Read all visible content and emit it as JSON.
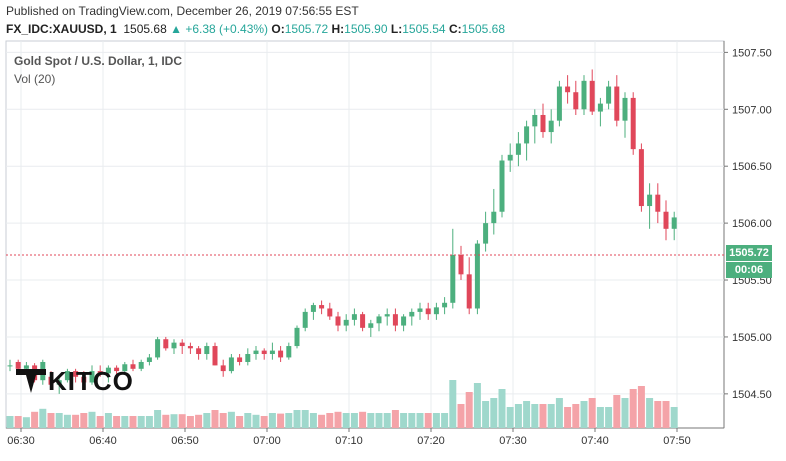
{
  "header": {
    "published": "Published on TradingView.com, December 26, 2019 07:56:55 EST",
    "symbol": "FX_IDC:XAUUSD, 1",
    "last": "1505.68",
    "change": "+6.38 (+0.43%)",
    "o_label": "O:",
    "o_value": "1505.72",
    "h_label": "H:",
    "h_value": "1505.90",
    "l_label": "L:",
    "l_value": "1505.54",
    "c_label": "C:",
    "c_value": "1505.68"
  },
  "legend": {
    "title": "Gold Spot / U.S. Dollar, 1, IDC",
    "volume": "Vol (20)"
  },
  "price_tag": "1505.72",
  "time_tag": "00:06",
  "logo_text": "KITCO",
  "colors": {
    "up": "#4caf7e",
    "down": "#e0475a",
    "up_vol": "#9fd8cc",
    "down_vol": "#f4a3a8",
    "grid": "#e9ecef"
  },
  "chart_data": {
    "type": "candlestick",
    "title": "Gold Spot / U.S. Dollar, 1, IDC",
    "ylim": [
      1504.2,
      1507.6
    ],
    "y_ticks": [
      "1507.50",
      "1507.00",
      "1506.50",
      "1506.00",
      "1505.50",
      "1505.00",
      "1504.50"
    ],
    "y_tick_values": [
      1507.5,
      1507.0,
      1506.5,
      1506.0,
      1505.5,
      1505.0,
      1504.5
    ],
    "x_ticks": [
      "06:30",
      "06:40",
      "06:50",
      "07:00",
      "07:10",
      "07:20",
      "07:30",
      "07:40",
      "07:50"
    ],
    "x_tick_minutes": [
      0,
      10,
      20,
      30,
      40,
      50,
      60,
      70,
      80
    ],
    "current_price": 1505.72,
    "start_minute": 0,
    "ohlc": [
      [
        1504.75,
        1504.8,
        1504.7,
        1504.75
      ],
      [
        1504.78,
        1504.8,
        1504.7,
        1504.72
      ],
      [
        1504.72,
        1504.78,
        1504.7,
        1504.75
      ],
      [
        1504.75,
        1504.77,
        1504.6,
        1504.62
      ],
      [
        1504.62,
        1504.8,
        1504.58,
        1504.78
      ],
      [
        1504.65,
        1504.7,
        1504.55,
        1504.58
      ],
      [
        1504.58,
        1504.65,
        1504.5,
        1504.62
      ],
      [
        1504.62,
        1504.72,
        1504.6,
        1504.7
      ],
      [
        1504.7,
        1504.72,
        1504.6,
        1504.65
      ],
      [
        1504.65,
        1504.7,
        1504.55,
        1504.6
      ],
      [
        1504.6,
        1504.75,
        1504.58,
        1504.7
      ],
      [
        1504.7,
        1504.75,
        1504.65,
        1504.68
      ],
      [
        1504.68,
        1504.75,
        1504.6,
        1504.73
      ],
      [
        1504.73,
        1504.75,
        1504.65,
        1504.7
      ],
      [
        1504.7,
        1504.78,
        1504.68,
        1504.76
      ],
      [
        1504.76,
        1504.8,
        1504.7,
        1504.72
      ],
      [
        1504.72,
        1504.8,
        1504.7,
        1504.78
      ],
      [
        1504.78,
        1504.85,
        1504.75,
        1504.82
      ],
      [
        1504.82,
        1505.0,
        1504.8,
        1504.98
      ],
      [
        1504.98,
        1505.0,
        1504.88,
        1504.9
      ],
      [
        1504.9,
        1504.98,
        1504.85,
        1504.95
      ],
      [
        1504.95,
        1504.98,
        1504.85,
        1504.92
      ],
      [
        1504.92,
        1504.95,
        1504.85,
        1504.9
      ],
      [
        1504.9,
        1504.92,
        1504.8,
        1504.85
      ],
      [
        1504.85,
        1504.95,
        1504.8,
        1504.92
      ],
      [
        1504.92,
        1504.95,
        1504.75,
        1504.75
      ],
      [
        1504.75,
        1504.8,
        1504.65,
        1504.7
      ],
      [
        1504.7,
        1504.85,
        1504.68,
        1504.82
      ],
      [
        1504.82,
        1504.85,
        1504.75,
        1504.78
      ],
      [
        1504.78,
        1504.9,
        1504.75,
        1504.85
      ],
      [
        1504.85,
        1504.92,
        1504.8,
        1504.88
      ],
      [
        1504.88,
        1504.9,
        1504.8,
        1504.85
      ],
      [
        1504.85,
        1504.95,
        1504.8,
        1504.88
      ],
      [
        1504.88,
        1504.92,
        1504.78,
        1504.82
      ],
      [
        1504.82,
        1504.95,
        1504.8,
        1504.92
      ],
      [
        1504.92,
        1505.1,
        1504.9,
        1505.08
      ],
      [
        1505.08,
        1505.25,
        1505.05,
        1505.22
      ],
      [
        1505.22,
        1505.3,
        1505.15,
        1505.28
      ],
      [
        1505.28,
        1505.32,
        1505.2,
        1505.25
      ],
      [
        1505.25,
        1505.3,
        1505.15,
        1505.18
      ],
      [
        1505.18,
        1505.22,
        1505.05,
        1505.1
      ],
      [
        1505.1,
        1505.2,
        1505.05,
        1505.15
      ],
      [
        1505.15,
        1505.25,
        1505.1,
        1505.2
      ],
      [
        1505.2,
        1505.22,
        1505.05,
        1505.08
      ],
      [
        1505.08,
        1505.15,
        1505.0,
        1505.12
      ],
      [
        1505.12,
        1505.2,
        1505.05,
        1505.18
      ],
      [
        1505.18,
        1505.25,
        1505.1,
        1505.2
      ],
      [
        1505.2,
        1505.25,
        1505.05,
        1505.1
      ],
      [
        1505.1,
        1505.2,
        1505.05,
        1505.18
      ],
      [
        1505.18,
        1505.25,
        1505.1,
        1505.22
      ],
      [
        1505.22,
        1505.3,
        1505.15,
        1505.25
      ],
      [
        1505.25,
        1505.3,
        1505.15,
        1505.2
      ],
      [
        1505.2,
        1505.3,
        1505.15,
        1505.26
      ],
      [
        1505.26,
        1505.35,
        1505.2,
        1505.3
      ],
      [
        1505.3,
        1505.95,
        1505.25,
        1505.72
      ],
      [
        1505.72,
        1505.8,
        1505.5,
        1505.55
      ],
      [
        1505.55,
        1505.7,
        1505.2,
        1505.25
      ],
      [
        1505.25,
        1505.85,
        1505.2,
        1505.82
      ],
      [
        1505.82,
        1506.1,
        1505.75,
        1506.0
      ],
      [
        1506.0,
        1506.3,
        1505.9,
        1506.1
      ],
      [
        1506.1,
        1506.6,
        1506.05,
        1506.55
      ],
      [
        1506.55,
        1506.7,
        1506.45,
        1506.6
      ],
      [
        1506.6,
        1506.8,
        1506.5,
        1506.7
      ],
      [
        1506.7,
        1506.9,
        1506.55,
        1506.85
      ],
      [
        1506.85,
        1507.0,
        1506.7,
        1506.95
      ],
      [
        1506.95,
        1507.05,
        1506.75,
        1506.8
      ],
      [
        1506.8,
        1507.0,
        1506.7,
        1506.9
      ],
      [
        1506.9,
        1507.25,
        1506.85,
        1507.2
      ],
      [
        1507.2,
        1507.3,
        1507.05,
        1507.15
      ],
      [
        1507.15,
        1507.25,
        1506.95,
        1507.0
      ],
      [
        1507.0,
        1507.3,
        1506.95,
        1507.25
      ],
      [
        1507.25,
        1507.35,
        1506.95,
        1506.98
      ],
      [
        1506.98,
        1507.1,
        1506.85,
        1507.05
      ],
      [
        1507.05,
        1507.25,
        1507.0,
        1507.2
      ],
      [
        1507.2,
        1507.3,
        1506.85,
        1506.9
      ],
      [
        1506.9,
        1507.15,
        1506.75,
        1507.1
      ],
      [
        1507.1,
        1507.15,
        1506.6,
        1506.65
      ],
      [
        1506.65,
        1506.7,
        1506.1,
        1506.15
      ],
      [
        1506.15,
        1506.35,
        1505.95,
        1506.25
      ],
      [
        1506.25,
        1506.35,
        1506.0,
        1506.1
      ],
      [
        1506.1,
        1506.2,
        1505.85,
        1505.95
      ],
      [
        1505.95,
        1506.1,
        1505.85,
        1506.05
      ]
    ]
  }
}
